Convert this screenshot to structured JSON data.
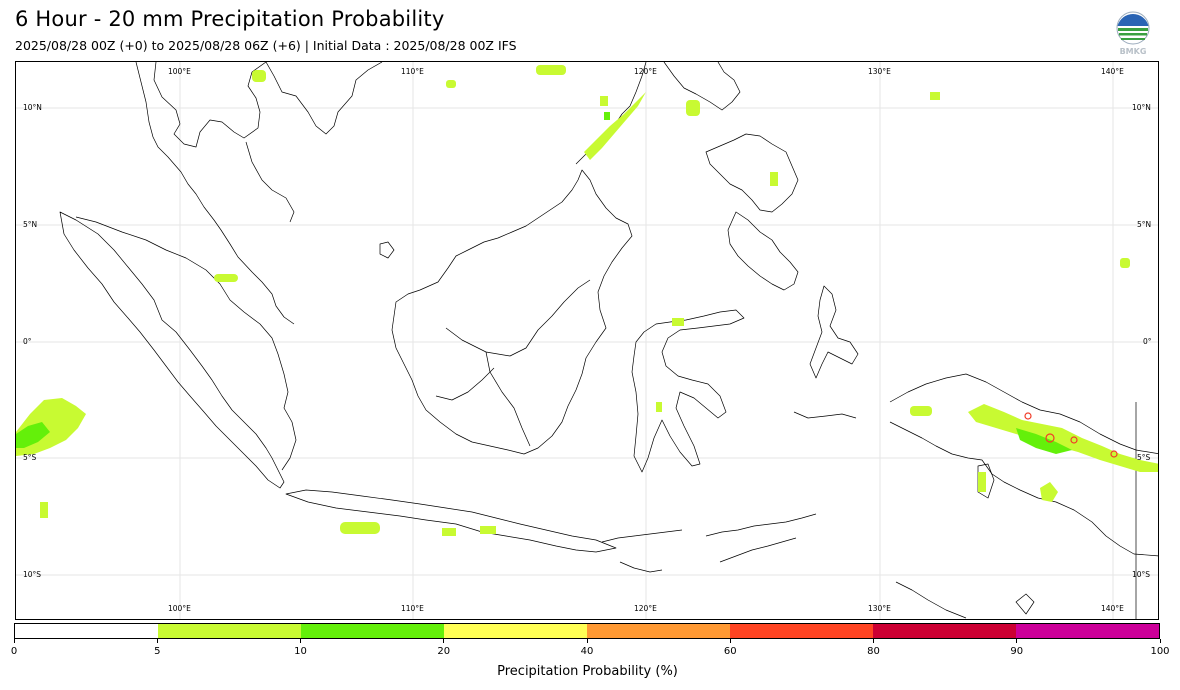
{
  "header": {
    "title": "6 Hour - 20 mm Precipitation Probability",
    "subtitle": "2025/08/28 00Z (+0) to 2025/08/28 06Z (+6) | Initial Data : 2025/08/28 00Z IFS",
    "logo_text": "BMKG"
  },
  "map": {
    "lon_labels": [
      "100°E",
      "110°E",
      "120°E",
      "130°E",
      "140°E"
    ],
    "lat_labels": [
      "10°N",
      "5°N",
      "0°",
      "5°S",
      "10°S"
    ],
    "colors": {
      "coast": "#000000",
      "grid": "#e6e6e6",
      "lime": "#c8fa32",
      "green": "#64f00a",
      "red": "#f03c28"
    }
  },
  "colorbar": {
    "title": "Precipitation Probability (%)",
    "ticks": [
      "0",
      "5",
      "10",
      "20",
      "40",
      "60",
      "80",
      "90",
      "100"
    ],
    "colors": [
      "#ffffff",
      "#c8fa32",
      "#64f00a",
      "#ffff55",
      "#ff9933",
      "#ff4422",
      "#cc0033",
      "#cc0099"
    ]
  }
}
